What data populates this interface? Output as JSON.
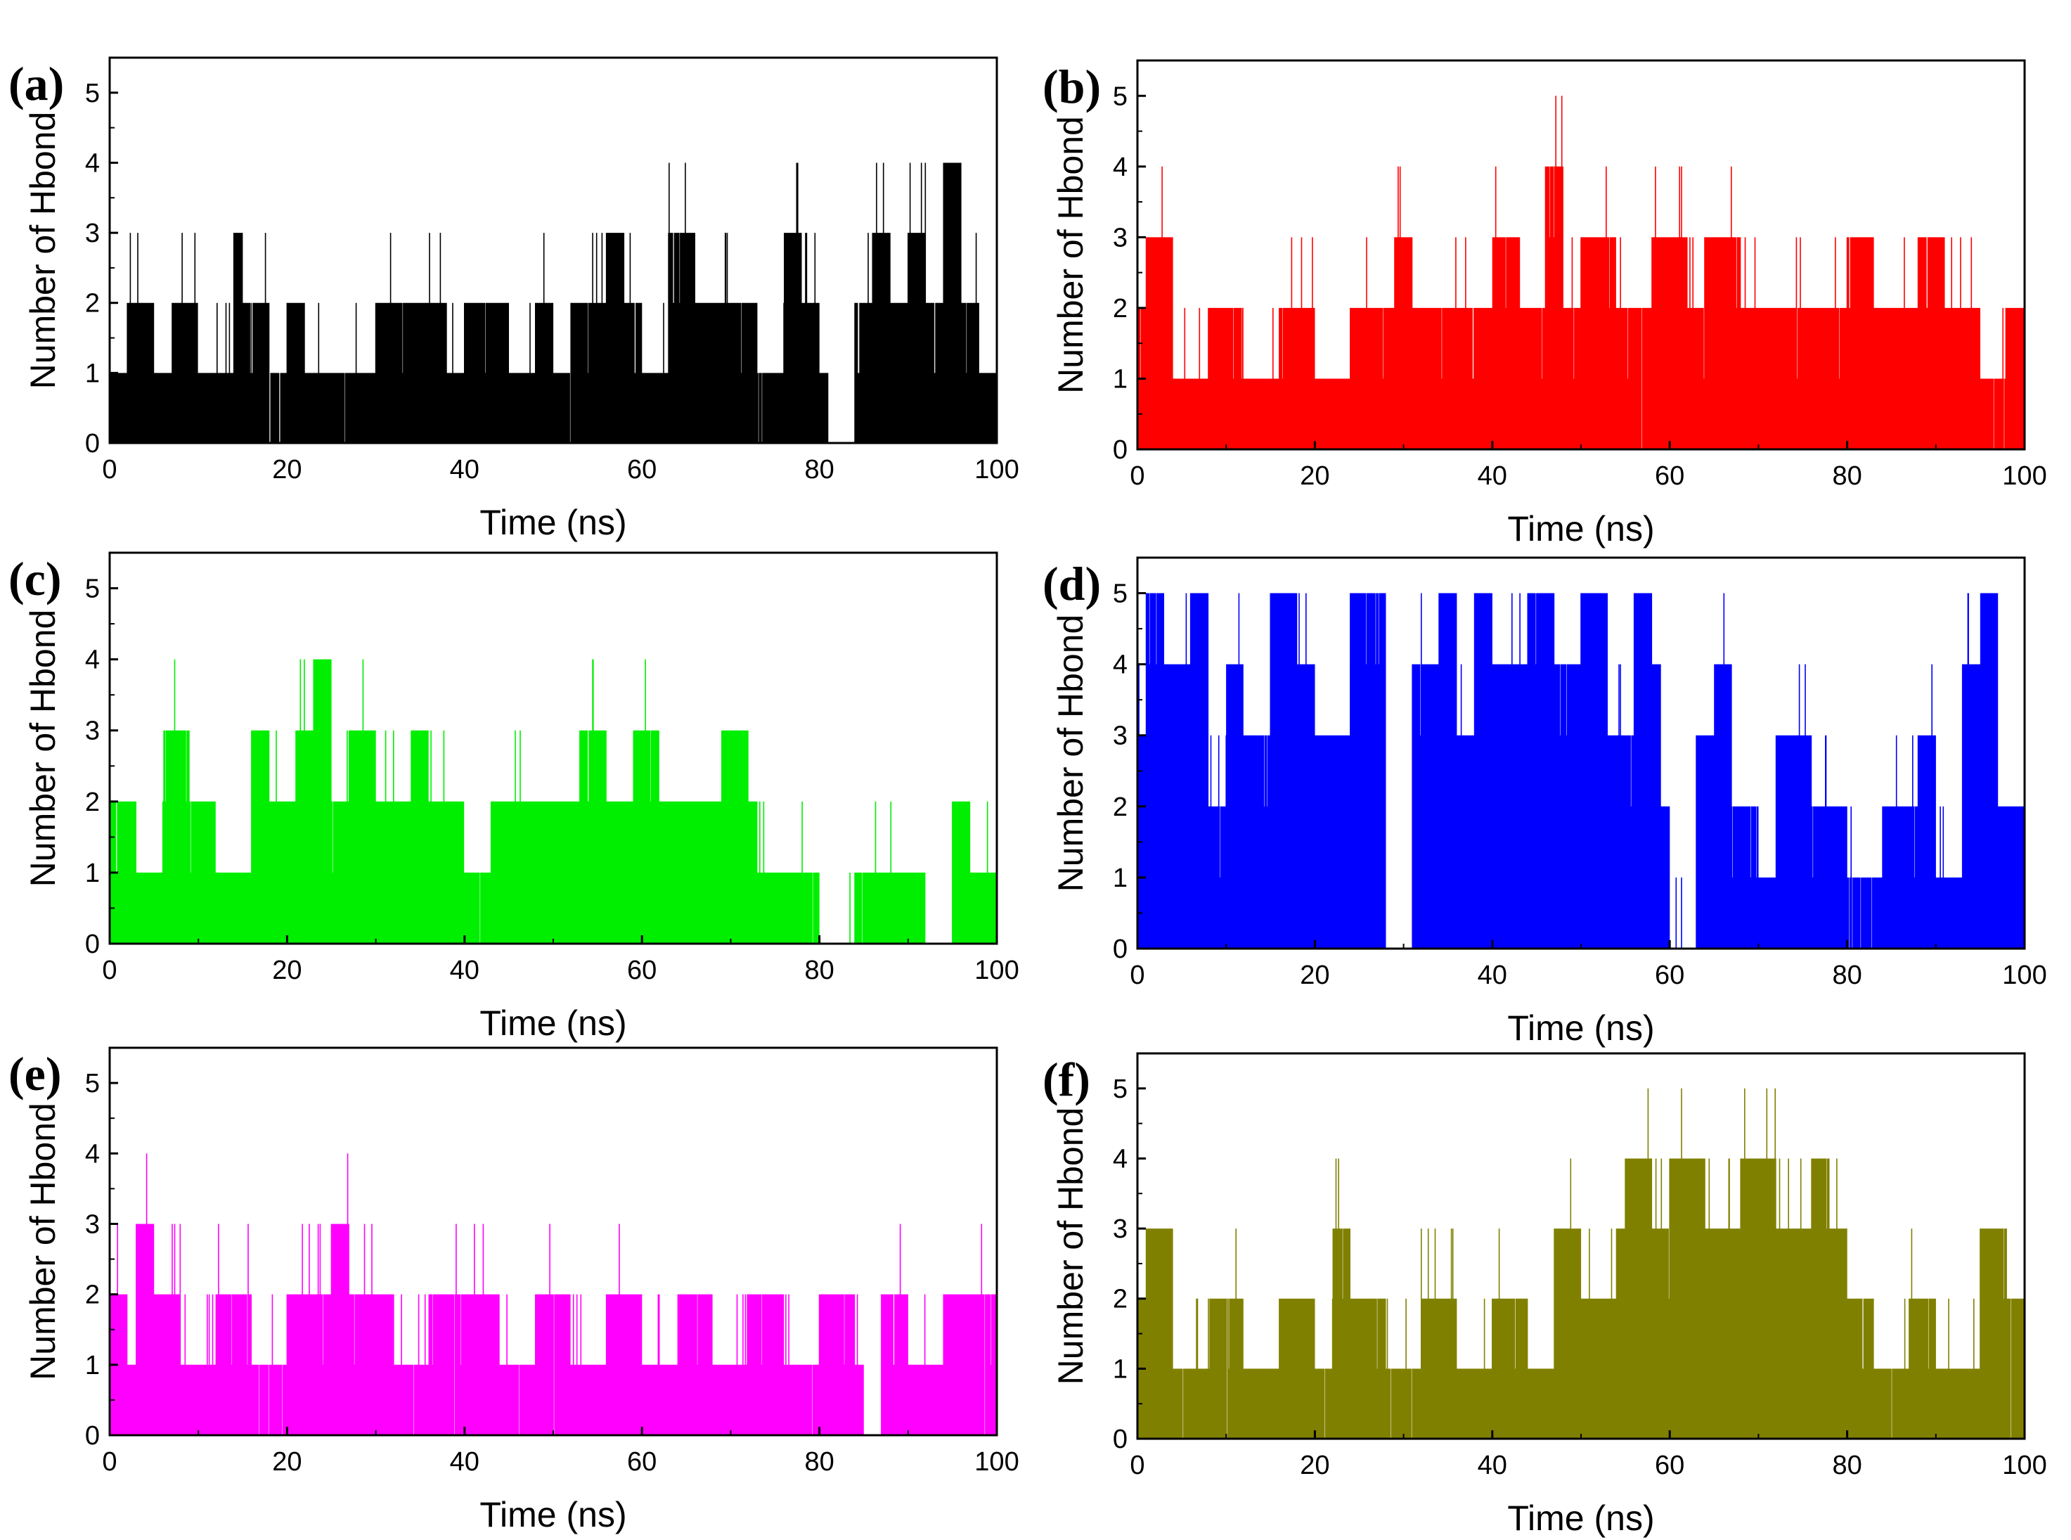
{
  "figure": {
    "panels": [
      "(a)",
      "(b)",
      "(c)",
      "(d)",
      "(e)",
      "(f)"
    ]
  },
  "chart_data": [
    {
      "panel": "(a)",
      "type": "line",
      "color": "#000000",
      "xlabel": "Time (ns)",
      "ylabel": "Number of Hbond",
      "xlim": [
        0,
        100
      ],
      "ylim": [
        0,
        5.5
      ],
      "xticks": [
        0,
        20,
        40,
        60,
        80,
        100
      ],
      "yticks": [
        0,
        1,
        2,
        3,
        4,
        5
      ],
      "series": [
        {
          "points": [
            [
              0,
              1
            ],
            [
              2,
              2
            ],
            [
              5,
              1
            ],
            [
              7,
              2
            ],
            [
              10,
              1
            ],
            [
              14,
              3
            ],
            [
              15,
              2
            ],
            [
              18,
              1
            ],
            [
              20,
              2
            ],
            [
              22,
              1
            ],
            [
              25,
              1
            ],
            [
              30,
              2
            ],
            [
              34,
              2
            ],
            [
              38,
              1
            ],
            [
              40,
              2
            ],
            [
              42,
              2
            ],
            [
              45,
              1
            ],
            [
              48,
              2
            ],
            [
              50,
              1
            ],
            [
              52,
              2
            ],
            [
              56,
              3
            ],
            [
              58,
              2
            ],
            [
              60,
              1
            ],
            [
              63,
              3
            ],
            [
              66,
              2
            ],
            [
              70,
              2
            ],
            [
              73,
              1
            ],
            [
              76,
              3
            ],
            [
              78,
              2
            ],
            [
              80,
              1
            ],
            [
              81,
              0
            ],
            [
              84,
              2
            ],
            [
              86,
              3
            ],
            [
              88,
              2
            ],
            [
              90,
              3
            ],
            [
              92,
              2
            ],
            [
              94,
              4
            ],
            [
              96,
              2
            ],
            [
              98,
              1
            ],
            [
              100,
              1
            ]
          ]
        }
      ]
    },
    {
      "panel": "(b)",
      "type": "line",
      "color": "#ff0000",
      "xlabel": "Time (ns)",
      "ylabel": "Number of Hbond",
      "xlim": [
        0,
        100
      ],
      "ylim": [
        0,
        5.5
      ],
      "xticks": [
        0,
        20,
        40,
        60,
        80,
        100
      ],
      "yticks": [
        0,
        1,
        2,
        3,
        4,
        5
      ],
      "series": [
        {
          "points": [
            [
              0,
              2
            ],
            [
              1,
              3
            ],
            [
              4,
              1
            ],
            [
              8,
              2
            ],
            [
              12,
              1
            ],
            [
              16,
              2
            ],
            [
              20,
              1
            ],
            [
              24,
              2
            ],
            [
              27,
              2
            ],
            [
              29,
              3
            ],
            [
              31,
              2
            ],
            [
              35,
              2
            ],
            [
              40,
              3
            ],
            [
              43,
              2
            ],
            [
              46,
              4
            ],
            [
              48,
              2
            ],
            [
              50,
              3
            ],
            [
              54,
              2
            ],
            [
              58,
              3
            ],
            [
              62,
              2
            ],
            [
              64,
              3
            ],
            [
              68,
              2
            ],
            [
              72,
              2
            ],
            [
              76,
              2
            ],
            [
              80,
              3
            ],
            [
              83,
              2
            ],
            [
              88,
              3
            ],
            [
              91,
              2
            ],
            [
              95,
              1
            ],
            [
              98,
              2
            ],
            [
              100,
              2
            ]
          ]
        }
      ]
    },
    {
      "panel": "(c)",
      "type": "line",
      "color": "#00ee00",
      "xlabel": "Time (ns)",
      "ylabel": "Number of Hbond",
      "xlim": [
        0,
        100
      ],
      "ylim": [
        0,
        5.5
      ],
      "xticks": [
        0,
        20,
        40,
        60,
        80,
        100
      ],
      "yticks": [
        0,
        1,
        2,
        3,
        4,
        5
      ],
      "series": [
        {
          "points": [
            [
              0,
              2
            ],
            [
              3,
              1
            ],
            [
              6,
              3
            ],
            [
              9,
              2
            ],
            [
              12,
              1
            ],
            [
              16,
              3
            ],
            [
              18,
              2
            ],
            [
              21,
              3
            ],
            [
              23,
              4
            ],
            [
              25,
              2
            ],
            [
              27,
              3
            ],
            [
              30,
              2
            ],
            [
              34,
              3
            ],
            [
              36,
              2
            ],
            [
              40,
              1
            ],
            [
              43,
              2
            ],
            [
              48,
              2
            ],
            [
              53,
              3
            ],
            [
              56,
              2
            ],
            [
              59,
              3
            ],
            [
              62,
              2
            ],
            [
              66,
              2
            ],
            [
              69,
              3
            ],
            [
              71,
              3
            ],
            [
              72,
              2
            ],
            [
              73,
              1
            ],
            [
              76,
              1
            ],
            [
              80,
              0
            ],
            [
              84,
              1
            ],
            [
              88,
              1
            ],
            [
              92,
              0
            ],
            [
              95,
              2
            ],
            [
              97,
              1
            ],
            [
              100,
              1
            ]
          ]
        }
      ]
    },
    {
      "panel": "(d)",
      "type": "line",
      "color": "#0000ff",
      "xlabel": "Time (ns)",
      "ylabel": "Number of Hbond",
      "xlim": [
        0,
        100
      ],
      "ylim": [
        0,
        5.5
      ],
      "xticks": [
        0,
        20,
        40,
        60,
        80,
        100
      ],
      "yticks": [
        0,
        1,
        2,
        3,
        4,
        5
      ],
      "series": [
        {
          "points": [
            [
              0,
              3
            ],
            [
              1,
              5
            ],
            [
              3,
              4
            ],
            [
              6,
              5
            ],
            [
              8,
              2
            ],
            [
              10,
              4
            ],
            [
              12,
              3
            ],
            [
              15,
              5
            ],
            [
              18,
              4
            ],
            [
              20,
              3
            ],
            [
              24,
              5
            ],
            [
              28,
              0
            ],
            [
              31,
              4
            ],
            [
              34,
              5
            ],
            [
              36,
              3
            ],
            [
              38,
              5
            ],
            [
              40,
              4
            ],
            [
              44,
              5
            ],
            [
              47,
              4
            ],
            [
              50,
              5
            ],
            [
              53,
              3
            ],
            [
              56,
              5
            ],
            [
              58,
              4
            ],
            [
              59,
              2
            ],
            [
              60,
              0
            ],
            [
              63,
              3
            ],
            [
              65,
              4
            ],
            [
              67,
              2
            ],
            [
              70,
              1
            ],
            [
              72,
              3
            ],
            [
              76,
              2
            ],
            [
              80,
              1
            ],
            [
              84,
              2
            ],
            [
              88,
              3
            ],
            [
              90,
              1
            ],
            [
              93,
              4
            ],
            [
              95,
              5
            ],
            [
              97,
              2
            ],
            [
              100,
              1
            ]
          ]
        }
      ]
    },
    {
      "panel": "(e)",
      "type": "line",
      "color": "#ff00ff",
      "xlabel": "Time (ns)",
      "ylabel": "Number of Hbond",
      "xlim": [
        0,
        100
      ],
      "ylim": [
        0,
        5.5
      ],
      "xticks": [
        0,
        20,
        40,
        60,
        80,
        100
      ],
      "yticks": [
        0,
        1,
        2,
        3,
        4,
        5
      ],
      "series": [
        {
          "points": [
            [
              0,
              2
            ],
            [
              2,
              1
            ],
            [
              3,
              3
            ],
            [
              5,
              2
            ],
            [
              8,
              1
            ],
            [
              12,
              2
            ],
            [
              16,
              1
            ],
            [
              20,
              2
            ],
            [
              25,
              3
            ],
            [
              27,
              2
            ],
            [
              32,
              1
            ],
            [
              36,
              2
            ],
            [
              40,
              2
            ],
            [
              44,
              1
            ],
            [
              48,
              2
            ],
            [
              52,
              1
            ],
            [
              56,
              2
            ],
            [
              60,
              1
            ],
            [
              64,
              2
            ],
            [
              68,
              1
            ],
            [
              72,
              2
            ],
            [
              76,
              1
            ],
            [
              80,
              2
            ],
            [
              84,
              1
            ],
            [
              85,
              0
            ],
            [
              87,
              2
            ],
            [
              90,
              1
            ],
            [
              94,
              2
            ],
            [
              98,
              2
            ],
            [
              100,
              2
            ]
          ]
        }
      ]
    },
    {
      "panel": "(f)",
      "type": "line",
      "color": "#808000",
      "xlabel": "Time (ns)",
      "ylabel": "Number of Hbond",
      "xlim": [
        0,
        100
      ],
      "ylim": [
        0,
        5.5
      ],
      "xticks": [
        0,
        20,
        40,
        60,
        80,
        100
      ],
      "yticks": [
        0,
        1,
        2,
        3,
        4,
        5
      ],
      "series": [
        {
          "points": [
            [
              0,
              2
            ],
            [
              1,
              3
            ],
            [
              4,
              1
            ],
            [
              8,
              2
            ],
            [
              12,
              1
            ],
            [
              16,
              2
            ],
            [
              20,
              1
            ],
            [
              22,
              3
            ],
            [
              24,
              2
            ],
            [
              28,
              1
            ],
            [
              32,
              2
            ],
            [
              36,
              1
            ],
            [
              40,
              2
            ],
            [
              44,
              1
            ],
            [
              47,
              3
            ],
            [
              50,
              2
            ],
            [
              54,
              3
            ],
            [
              55,
              4
            ],
            [
              58,
              3
            ],
            [
              60,
              4
            ],
            [
              64,
              3
            ],
            [
              68,
              4
            ],
            [
              72,
              3
            ],
            [
              76,
              4
            ],
            [
              78,
              3
            ],
            [
              80,
              2
            ],
            [
              83,
              1
            ],
            [
              87,
              2
            ],
            [
              90,
              1
            ],
            [
              95,
              3
            ],
            [
              98,
              2
            ],
            [
              100,
              1
            ]
          ]
        }
      ]
    }
  ]
}
